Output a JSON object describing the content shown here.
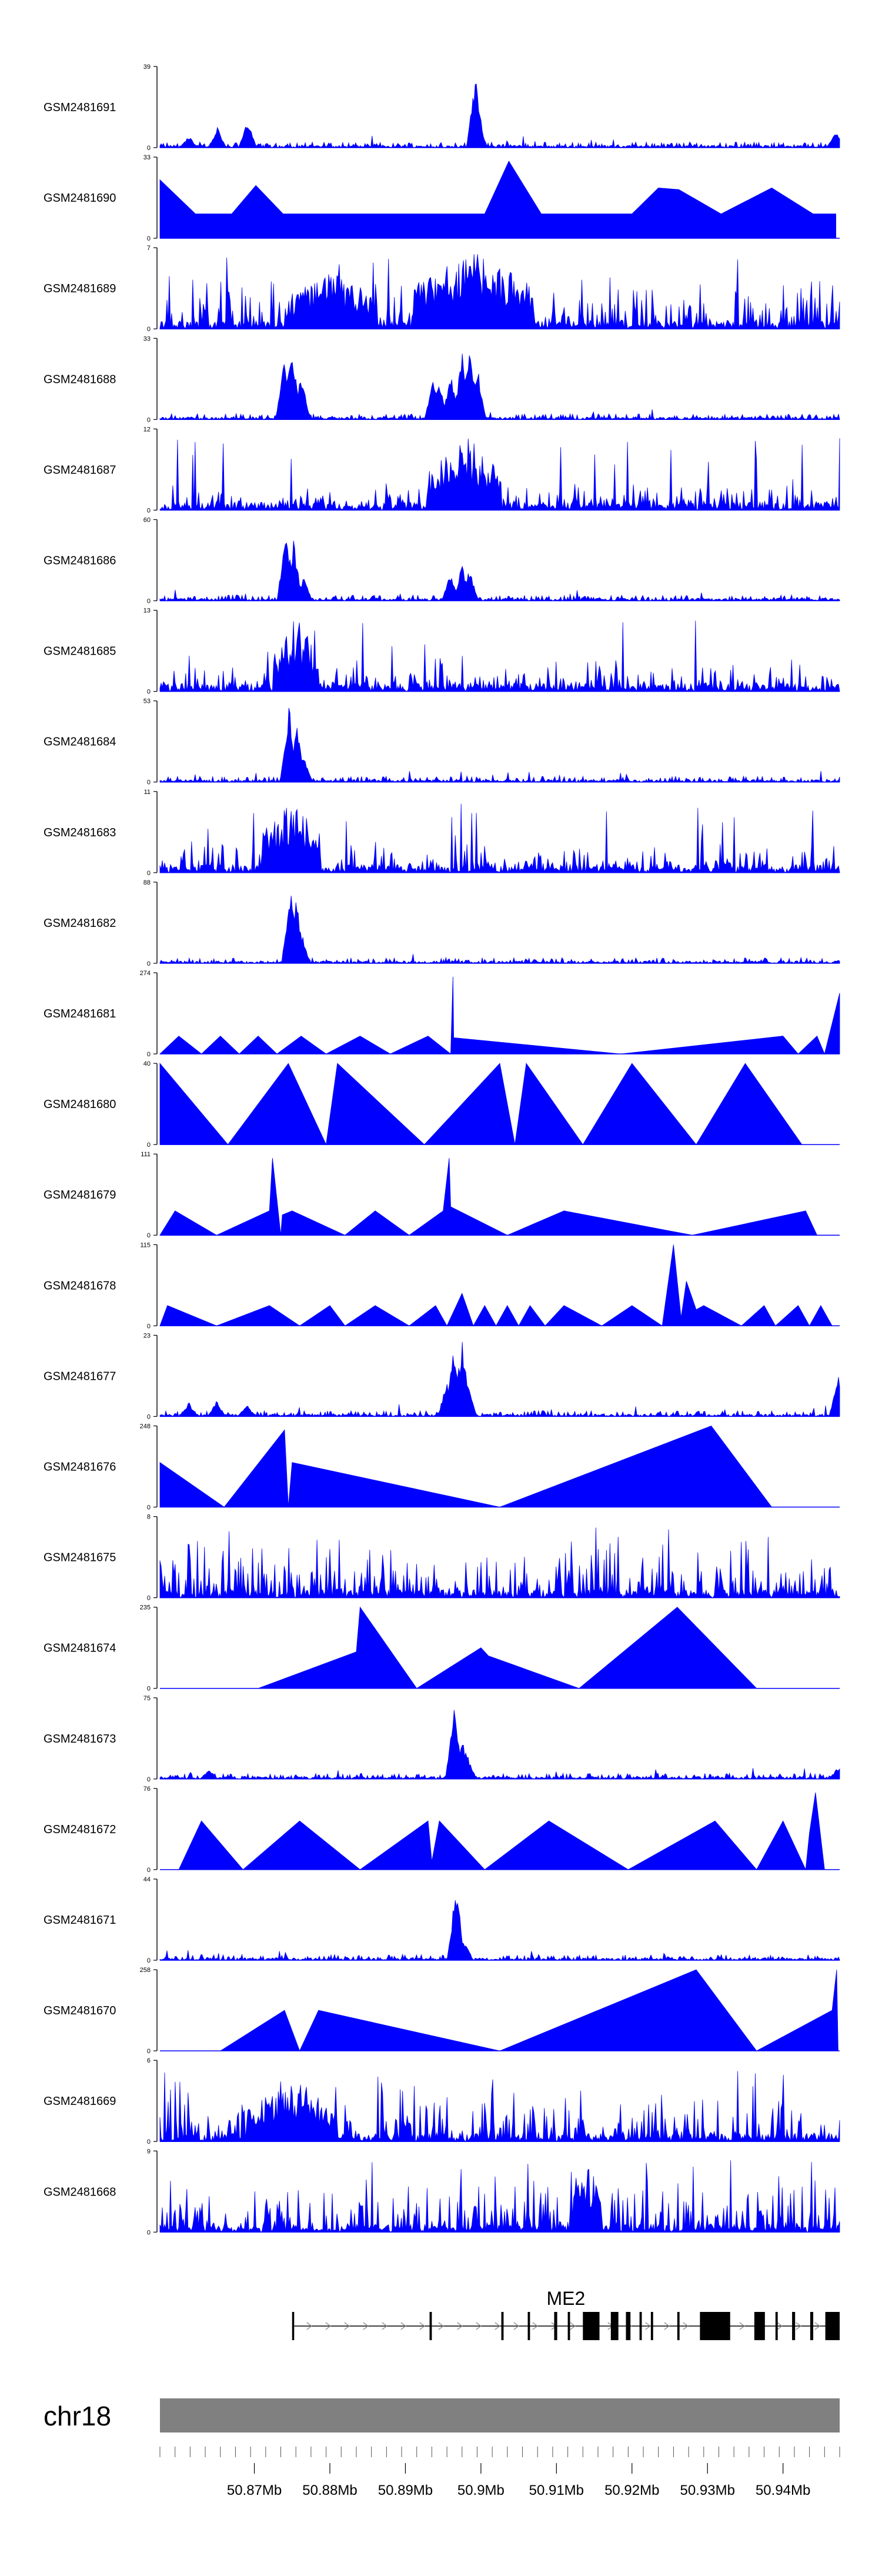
{
  "chart_data": {
    "type": "area",
    "chromosome": "chr18",
    "xlim": [
      50.8575,
      50.9475
    ],
    "x_unit": "Mb",
    "tracks": [
      {
        "name": "GSM2481691",
        "ymax": "39",
        "ymin": "0",
        "pattern": "peaks",
        "peaks": [
          [
            50.8613,
            0.15
          ],
          [
            50.8651,
            0.25
          ],
          [
            50.8691,
            0.35
          ],
          [
            50.8993,
            0.95
          ],
          [
            50.8995,
            0.55
          ],
          [
            50.947,
            0.2
          ]
        ]
      },
      {
        "name": "GSM2481690",
        "ymax": "33",
        "ymin": "0",
        "pattern": "tri",
        "tri": [
          [
            50.8575,
            0.72
          ],
          [
            50.8622,
            0.3
          ],
          [
            50.867,
            0.3
          ],
          [
            50.8702,
            0.65
          ],
          [
            50.8738,
            0.3
          ],
          [
            50.8772,
            0.3
          ],
          [
            50.8801,
            0.3
          ],
          [
            50.884,
            0.3
          ],
          [
            50.8882,
            0.3
          ],
          [
            50.8925,
            0.3
          ],
          [
            50.8965,
            0.3
          ],
          [
            50.9005,
            0.3
          ],
          [
            50.9037,
            0.95
          ],
          [
            50.908,
            0.3
          ],
          [
            50.912,
            0.3
          ],
          [
            50.916,
            0.3
          ],
          [
            50.92,
            0.3
          ],
          [
            50.9235,
            0.62
          ],
          [
            50.9262,
            0.6
          ],
          [
            50.929,
            0.45
          ],
          [
            50.9318,
            0.3
          ],
          [
            50.9385,
            0.62
          ],
          [
            50.944,
            0.3
          ],
          [
            50.947,
            0.3
          ]
        ]
      },
      {
        "name": "GSM2481689",
        "ymax": "7",
        "ymin": "0",
        "pattern": "noise",
        "density": 0.5,
        "clusters": [
          [
            50.8803,
            0.006,
            0.7
          ],
          [
            50.899,
            0.008,
            1.0
          ]
        ]
      },
      {
        "name": "GSM2481688",
        "ymax": "33",
        "ymin": "0",
        "pattern": "peaks",
        "peaks": [
          [
            50.874,
            0.82
          ],
          [
            50.875,
            0.9
          ],
          [
            50.8762,
            0.55
          ],
          [
            50.8937,
            0.5
          ],
          [
            50.8945,
            0.45
          ],
          [
            50.896,
            0.6
          ],
          [
            50.8975,
            0.85
          ],
          [
            50.8985,
            0.95
          ],
          [
            50.8995,
            0.7
          ]
        ]
      },
      {
        "name": "GSM2481687",
        "ymax": "12",
        "ymin": "0",
        "pattern": "noise",
        "density": 0.25,
        "clusters": [
          [
            50.8978,
            0.005,
            0.95
          ]
        ]
      },
      {
        "name": "GSM2481686",
        "ymax": "60",
        "ymin": "0",
        "pattern": "peaks",
        "peaks": [
          [
            50.8742,
            0.92
          ],
          [
            50.8752,
            0.75
          ],
          [
            50.8765,
            0.3
          ],
          [
            50.896,
            0.35
          ],
          [
            50.8975,
            0.45
          ],
          [
            50.8985,
            0.4
          ]
        ]
      },
      {
        "name": "GSM2481685",
        "ymax": "13",
        "ymin": "0",
        "pattern": "noise",
        "density": 0.35,
        "clusters": [
          [
            50.8755,
            0.003,
            0.95
          ]
        ]
      },
      {
        "name": "GSM2481684",
        "ymax": "53",
        "ymin": "0",
        "pattern": "peaks",
        "peaks": [
          [
            50.8746,
            0.95
          ],
          [
            50.8756,
            0.7
          ],
          [
            50.8765,
            0.35
          ]
        ]
      },
      {
        "name": "GSM2481683",
        "ymax": "11",
        "ymin": "0",
        "pattern": "noise",
        "density": 0.3,
        "clusters": [
          [
            50.8749,
            0.004,
            0.95
          ]
        ]
      },
      {
        "name": "GSM2481682",
        "ymax": "88",
        "ymin": "0",
        "pattern": "peaks",
        "peaks": [
          [
            50.8748,
            0.95
          ],
          [
            50.8755,
            0.85
          ],
          [
            50.8762,
            0.4
          ]
        ]
      },
      {
        "name": "GSM2481681",
        "ymax": "274",
        "ymin": "0",
        "pattern": "tri",
        "tri": [
          [
            50.8575,
            0.0
          ],
          [
            50.86,
            0.22
          ],
          [
            50.863,
            0.0
          ],
          [
            50.8655,
            0.22
          ],
          [
            50.868,
            0.0
          ],
          [
            50.8705,
            0.22
          ],
          [
            50.873,
            0.0
          ],
          [
            50.8762,
            0.22
          ],
          [
            50.8795,
            0.0
          ],
          [
            50.884,
            0.22
          ],
          [
            50.888,
            0.0
          ],
          [
            50.893,
            0.22
          ],
          [
            50.896,
            0.0
          ],
          [
            50.8963,
            0.95
          ],
          [
            50.8964,
            0.2
          ],
          [
            50.9185,
            0.0
          ],
          [
            50.94,
            0.22
          ],
          [
            50.942,
            0.0
          ],
          [
            50.9445,
            0.22
          ],
          [
            50.9455,
            0.0
          ],
          [
            50.9475,
            0.75
          ]
        ]
      },
      {
        "name": "GSM2481680",
        "ymax": "40",
        "ymin": "0",
        "pattern": "tri",
        "tri": [
          [
            50.8575,
            1.0
          ],
          [
            50.8665,
            0.0
          ],
          [
            50.8745,
            1.0
          ],
          [
            50.8795,
            0.0
          ],
          [
            50.881,
            1.0
          ],
          [
            50.8925,
            0.0
          ],
          [
            50.9025,
            1.0
          ],
          [
            50.9045,
            0.0
          ],
          [
            50.906,
            1.0
          ],
          [
            50.9135,
            0.0
          ],
          [
            50.92,
            1.0
          ],
          [
            50.9285,
            0.0
          ],
          [
            50.935,
            1.0
          ],
          [
            50.9425,
            0.0
          ]
        ]
      },
      {
        "name": "GSM2481679",
        "ymax": "111",
        "ymin": "0",
        "pattern": "tri",
        "tri": [
          [
            50.8575,
            0.0
          ],
          [
            50.8595,
            0.3
          ],
          [
            50.865,
            0.0
          ],
          [
            50.872,
            0.3
          ],
          [
            50.8724,
            0.95
          ],
          [
            50.8735,
            0.0
          ],
          [
            50.8737,
            0.25
          ],
          [
            50.875,
            0.3
          ],
          [
            50.882,
            0.0
          ],
          [
            50.886,
            0.3
          ],
          [
            50.8905,
            0.0
          ],
          [
            50.895,
            0.3
          ],
          [
            50.8958,
            0.95
          ],
          [
            50.896,
            0.35
          ],
          [
            50.9035,
            0.0
          ],
          [
            50.911,
            0.3
          ],
          [
            50.928,
            0.0
          ],
          [
            50.943,
            0.3
          ],
          [
            50.9445,
            0.0
          ]
        ]
      },
      {
        "name": "GSM2481678",
        "ymax": "115",
        "ymin": "0",
        "pattern": "tri",
        "tri": [
          [
            50.8575,
            0.0
          ],
          [
            50.8585,
            0.25
          ],
          [
            50.865,
            0.0
          ],
          [
            50.872,
            0.25
          ],
          [
            50.876,
            0.0
          ],
          [
            50.88,
            0.25
          ],
          [
            50.882,
            0.0
          ],
          [
            50.886,
            0.25
          ],
          [
            50.8905,
            0.0
          ],
          [
            50.894,
            0.25
          ],
          [
            50.8955,
            0.0
          ],
          [
            50.8975,
            0.4
          ],
          [
            50.899,
            0.0
          ],
          [
            50.9005,
            0.25
          ],
          [
            50.902,
            0.0
          ],
          [
            50.9035,
            0.25
          ],
          [
            50.905,
            0.0
          ],
          [
            50.9065,
            0.25
          ],
          [
            50.9085,
            0.0
          ],
          [
            50.911,
            0.25
          ],
          [
            50.916,
            0.0
          ],
          [
            50.92,
            0.25
          ],
          [
            50.924,
            0.0
          ],
          [
            50.9255,
            1.0
          ],
          [
            50.9265,
            0.1
          ],
          [
            50.9272,
            0.55
          ],
          [
            50.9285,
            0.2
          ],
          [
            50.9295,
            0.25
          ],
          [
            50.9345,
            0.0
          ],
          [
            50.9375,
            0.25
          ],
          [
            50.939,
            0.0
          ],
          [
            50.942,
            0.25
          ],
          [
            50.9435,
            0.0
          ],
          [
            50.945,
            0.25
          ],
          [
            50.9465,
            0.0
          ]
        ]
      },
      {
        "name": "GSM2481677",
        "ymax": "23",
        "ymin": "0",
        "pattern": "peaks",
        "peaks": [
          [
            50.8613,
            0.18
          ],
          [
            50.865,
            0.2
          ],
          [
            50.869,
            0.15
          ],
          [
            50.8955,
            0.45
          ],
          [
            50.8964,
            0.85
          ],
          [
            50.8975,
            0.95
          ],
          [
            50.8982,
            0.5
          ],
          [
            50.9473,
            0.55
          ]
        ]
      },
      {
        "name": "GSM2481676",
        "ymax": "248",
        "ymin": "0",
        "pattern": "tri",
        "tri": [
          [
            50.8575,
            0.55
          ],
          [
            50.866,
            0.0
          ],
          [
            50.874,
            0.95
          ],
          [
            50.8745,
            0.0
          ],
          [
            50.875,
            0.55
          ],
          [
            50.9025,
            0.0
          ],
          [
            50.9305,
            1.0
          ],
          [
            50.9385,
            0.0
          ]
        ]
      },
      {
        "name": "GSM2481675",
        "ymax": "8",
        "ymin": "0",
        "pattern": "noise",
        "density": 0.6,
        "clusters": []
      },
      {
        "name": "GSM2481674",
        "ymax": "235",
        "ymin": "0",
        "pattern": "tri",
        "tri": [
          [
            50.8705,
            0.0
          ],
          [
            50.8835,
            0.45
          ],
          [
            50.884,
            1.0
          ],
          [
            50.8915,
            0.0
          ],
          [
            50.9,
            0.5
          ],
          [
            50.901,
            0.4
          ],
          [
            50.913,
            0.0
          ],
          [
            50.926,
            1.0
          ],
          [
            50.9365,
            0.0
          ]
        ]
      },
      {
        "name": "GSM2481673",
        "ymax": "75",
        "ymin": "0",
        "pattern": "peaks",
        "peaks": [
          [
            50.864,
            0.12
          ],
          [
            50.8965,
            0.95
          ],
          [
            50.8975,
            0.55
          ],
          [
            50.8982,
            0.3
          ],
          [
            50.9473,
            0.15
          ]
        ]
      },
      {
        "name": "GSM2481672",
        "ymax": "76",
        "ymin": "0",
        "pattern": "tri",
        "tri": [
          [
            50.86,
            0.0
          ],
          [
            50.863,
            0.6
          ],
          [
            50.8685,
            0.0
          ],
          [
            50.876,
            0.6
          ],
          [
            50.884,
            0.0
          ],
          [
            50.893,
            0.6
          ],
          [
            50.8935,
            0.1
          ],
          [
            50.8945,
            0.6
          ],
          [
            50.9005,
            0.0
          ],
          [
            50.909,
            0.6
          ],
          [
            50.9195,
            0.0
          ],
          [
            50.931,
            0.6
          ],
          [
            50.9365,
            0.0
          ],
          [
            50.94,
            0.6
          ],
          [
            50.943,
            0.0
          ],
          [
            50.9435,
            0.45
          ],
          [
            50.9443,
            0.95
          ],
          [
            50.9455,
            0.0
          ]
        ]
      },
      {
        "name": "GSM2481671",
        "ymax": "44",
        "ymin": "0",
        "pattern": "peaks",
        "peaks": [
          [
            50.8967,
            0.95
          ],
          [
            50.897,
            0.3
          ],
          [
            50.8978,
            0.25
          ]
        ]
      },
      {
        "name": "GSM2481670",
        "ymax": "258",
        "ymin": "0",
        "pattern": "tri",
        "tri": [
          [
            50.8655,
            0.0
          ],
          [
            50.874,
            0.5
          ],
          [
            50.876,
            0.0
          ],
          [
            50.8785,
            0.5
          ],
          [
            50.9025,
            0.0
          ],
          [
            50.9285,
            1.0
          ],
          [
            50.9365,
            0.0
          ],
          [
            50.9465,
            0.5
          ],
          [
            50.9471,
            1.0
          ],
          [
            50.9473,
            0.0
          ]
        ]
      },
      {
        "name": "GSM2481669",
        "ymax": "6",
        "ymin": "0",
        "pattern": "noise",
        "density": 0.55,
        "clusters": [
          [
            50.875,
            0.006,
            0.8
          ]
        ]
      },
      {
        "name": "GSM2481668",
        "ymax": "9",
        "ymin": "0",
        "pattern": "noise",
        "density": 0.5,
        "clusters": [
          [
            50.914,
            0.002,
            0.9
          ]
        ]
      }
    ],
    "gene": {
      "name": "ME2",
      "strand": "+",
      "start": 50.875,
      "end": 50.9475,
      "exons": [
        [
          50.875,
          50.8752
        ],
        [
          50.8932,
          50.8935
        ],
        [
          50.9027,
          50.903
        ],
        [
          50.9062,
          50.9065
        ],
        [
          50.9097,
          50.9101
        ],
        [
          50.9115,
          50.9118
        ],
        [
          50.9135,
          50.9157
        ],
        [
          50.9172,
          50.9182
        ],
        [
          50.9192,
          50.9198
        ],
        [
          50.921,
          50.9213
        ],
        [
          50.9225,
          50.9228
        ],
        [
          50.926,
          50.9263
        ],
        [
          50.929,
          50.933
        ],
        [
          50.9362,
          50.9376
        ],
        [
          50.939,
          50.9393
        ],
        [
          50.9412,
          50.9416
        ],
        [
          50.9436,
          50.944
        ],
        [
          50.9456,
          50.9475
        ]
      ]
    },
    "axis": {
      "ticks": [
        50.87,
        50.88,
        50.89,
        50.9,
        50.91,
        50.92,
        50.93,
        50.94
      ],
      "tick_labels": [
        "50.87Mb",
        "50.88Mb",
        "50.89Mb",
        "50.9Mb",
        "50.91Mb",
        "50.92Mb",
        "50.93Mb",
        "50.94Mb"
      ],
      "minor_step": 0.002
    },
    "colors": {
      "signal": "#0000ff",
      "gene": "#000000",
      "ideogram": "#808080",
      "axis": "#000000"
    }
  }
}
